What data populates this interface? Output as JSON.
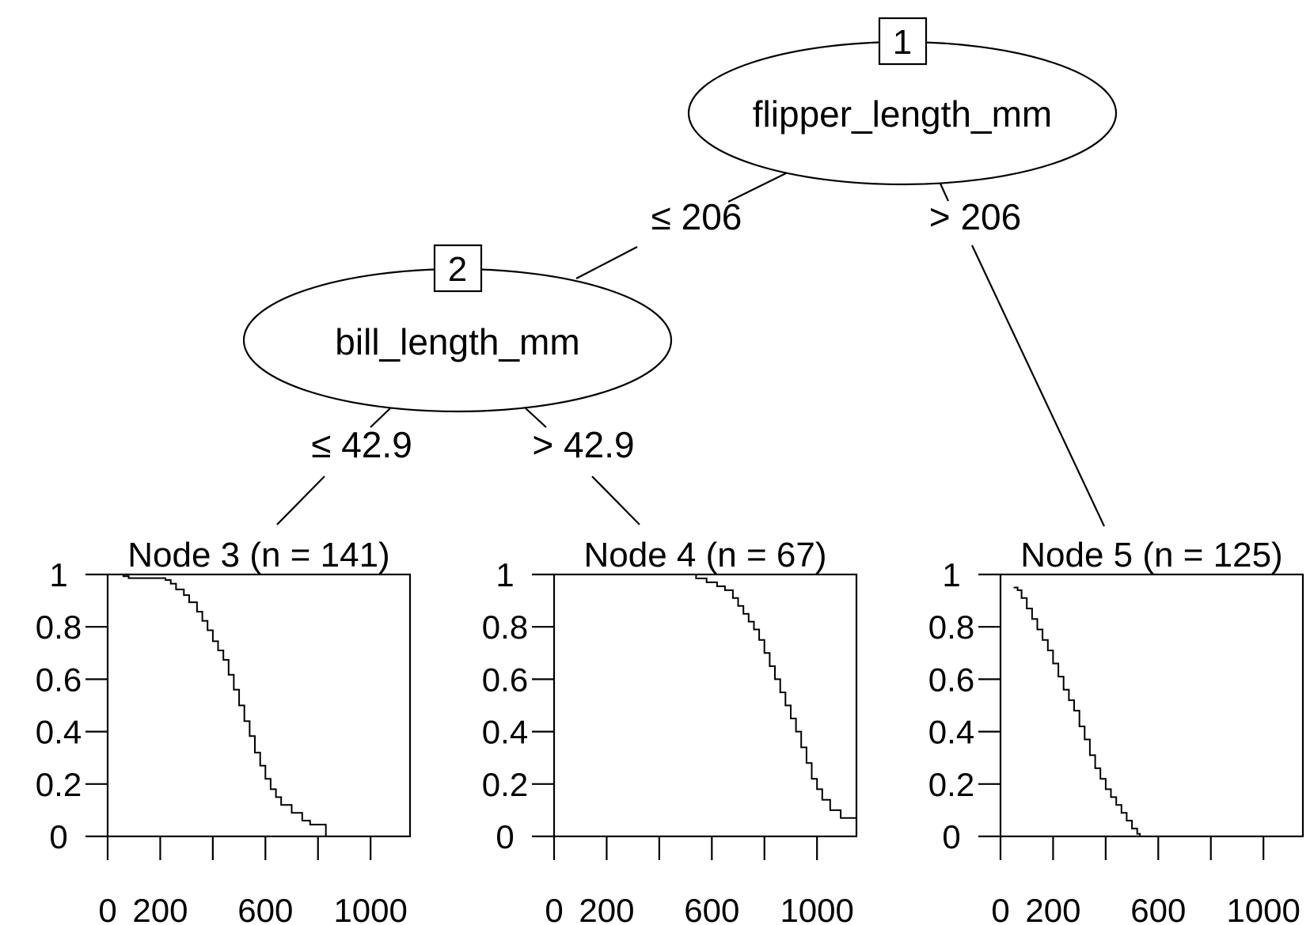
{
  "tree": {
    "inner_nodes": [
      {
        "id": "1",
        "variable": "flipper_length_mm"
      },
      {
        "id": "2",
        "variable": "bill_length_mm"
      }
    ],
    "edges": [
      {
        "from": "1",
        "to": "2",
        "label": "≤ 206"
      },
      {
        "from": "1",
        "to": "5",
        "label": "> 206"
      },
      {
        "from": "2",
        "to": "3",
        "label": "≤ 42.9"
      },
      {
        "from": "2",
        "to": "4",
        "label": "> 42.9"
      }
    ]
  },
  "chart_data": [
    {
      "type": "line",
      "title": "Node 3 (n = 141)",
      "xlim": [
        0,
        1150
      ],
      "ylim": [
        0,
        1
      ],
      "x_ticks": [
        0,
        200,
        400,
        600,
        800,
        1000
      ],
      "x_tick_labels": [
        "0",
        "200",
        "",
        "600",
        "",
        "1000"
      ],
      "y_ticks": [
        0,
        0.2,
        0.4,
        0.6,
        0.8,
        1
      ],
      "y_tick_labels": [
        "0",
        "0.2",
        "0.4",
        "0.6",
        "0.8",
        "1"
      ],
      "series": [
        {
          "x": [
            45,
            60,
            80,
            220,
            240,
            260,
            290,
            310,
            340,
            360,
            380,
            400,
            420,
            440,
            460,
            480,
            500,
            520,
            540,
            560,
            580,
            600,
            620,
            640,
            660,
            700,
            740,
            770,
            800,
            830,
            830
          ],
          "y": [
            1.0,
            0.993,
            0.986,
            0.979,
            0.965,
            0.943,
            0.921,
            0.894,
            0.858,
            0.823,
            0.787,
            0.745,
            0.71,
            0.674,
            0.617,
            0.56,
            0.5,
            0.44,
            0.383,
            0.32,
            0.27,
            0.22,
            0.18,
            0.15,
            0.12,
            0.09,
            0.06,
            0.045,
            0.045,
            0.045,
            0.0
          ]
        }
      ]
    },
    {
      "type": "line",
      "title": "Node 4 (n = 67)",
      "xlim": [
        0,
        1150
      ],
      "ylim": [
        0,
        1
      ],
      "x_ticks": [
        0,
        200,
        400,
        600,
        800,
        1000
      ],
      "x_tick_labels": [
        "0",
        "200",
        "",
        "600",
        "",
        "1000"
      ],
      "y_ticks": [
        0,
        0.2,
        0.4,
        0.6,
        0.8,
        1
      ],
      "y_tick_labels": [
        "0",
        "0.2",
        "0.4",
        "0.6",
        "0.8",
        "1"
      ],
      "series": [
        {
          "x": [
            500,
            540,
            580,
            620,
            650,
            680,
            700,
            720,
            740,
            760,
            780,
            800,
            820,
            840,
            860,
            880,
            900,
            920,
            940,
            960,
            980,
            1000,
            1020,
            1050,
            1090,
            1150
          ],
          "y": [
            1.0,
            0.985,
            0.97,
            0.955,
            0.94,
            0.91,
            0.88,
            0.85,
            0.82,
            0.79,
            0.75,
            0.7,
            0.65,
            0.6,
            0.55,
            0.5,
            0.45,
            0.4,
            0.34,
            0.28,
            0.22,
            0.18,
            0.14,
            0.1,
            0.07,
            0.07
          ]
        }
      ]
    },
    {
      "type": "line",
      "title": "Node 5 (n = 125)",
      "xlim": [
        0,
        1150
      ],
      "ylim": [
        0,
        1
      ],
      "x_ticks": [
        0,
        200,
        400,
        600,
        800,
        1000
      ],
      "x_tick_labels": [
        "0",
        "200",
        "",
        "600",
        "",
        "1000"
      ],
      "y_ticks": [
        0,
        0.2,
        0.4,
        0.6,
        0.8,
        1
      ],
      "y_tick_labels": [
        "0",
        "0.2",
        "0.4",
        "0.6",
        "0.8",
        "1"
      ],
      "series": [
        {
          "x": [
            50,
            65,
            80,
            100,
            120,
            140,
            160,
            180,
            200,
            220,
            240,
            260,
            280,
            300,
            320,
            340,
            360,
            380,
            400,
            420,
            440,
            460,
            480,
            500,
            520,
            530
          ],
          "y": [
            0.95,
            0.94,
            0.91,
            0.87,
            0.83,
            0.79,
            0.75,
            0.71,
            0.66,
            0.61,
            0.56,
            0.52,
            0.48,
            0.42,
            0.37,
            0.31,
            0.26,
            0.22,
            0.18,
            0.15,
            0.12,
            0.09,
            0.06,
            0.03,
            0.01,
            0.0
          ]
        }
      ]
    }
  ]
}
